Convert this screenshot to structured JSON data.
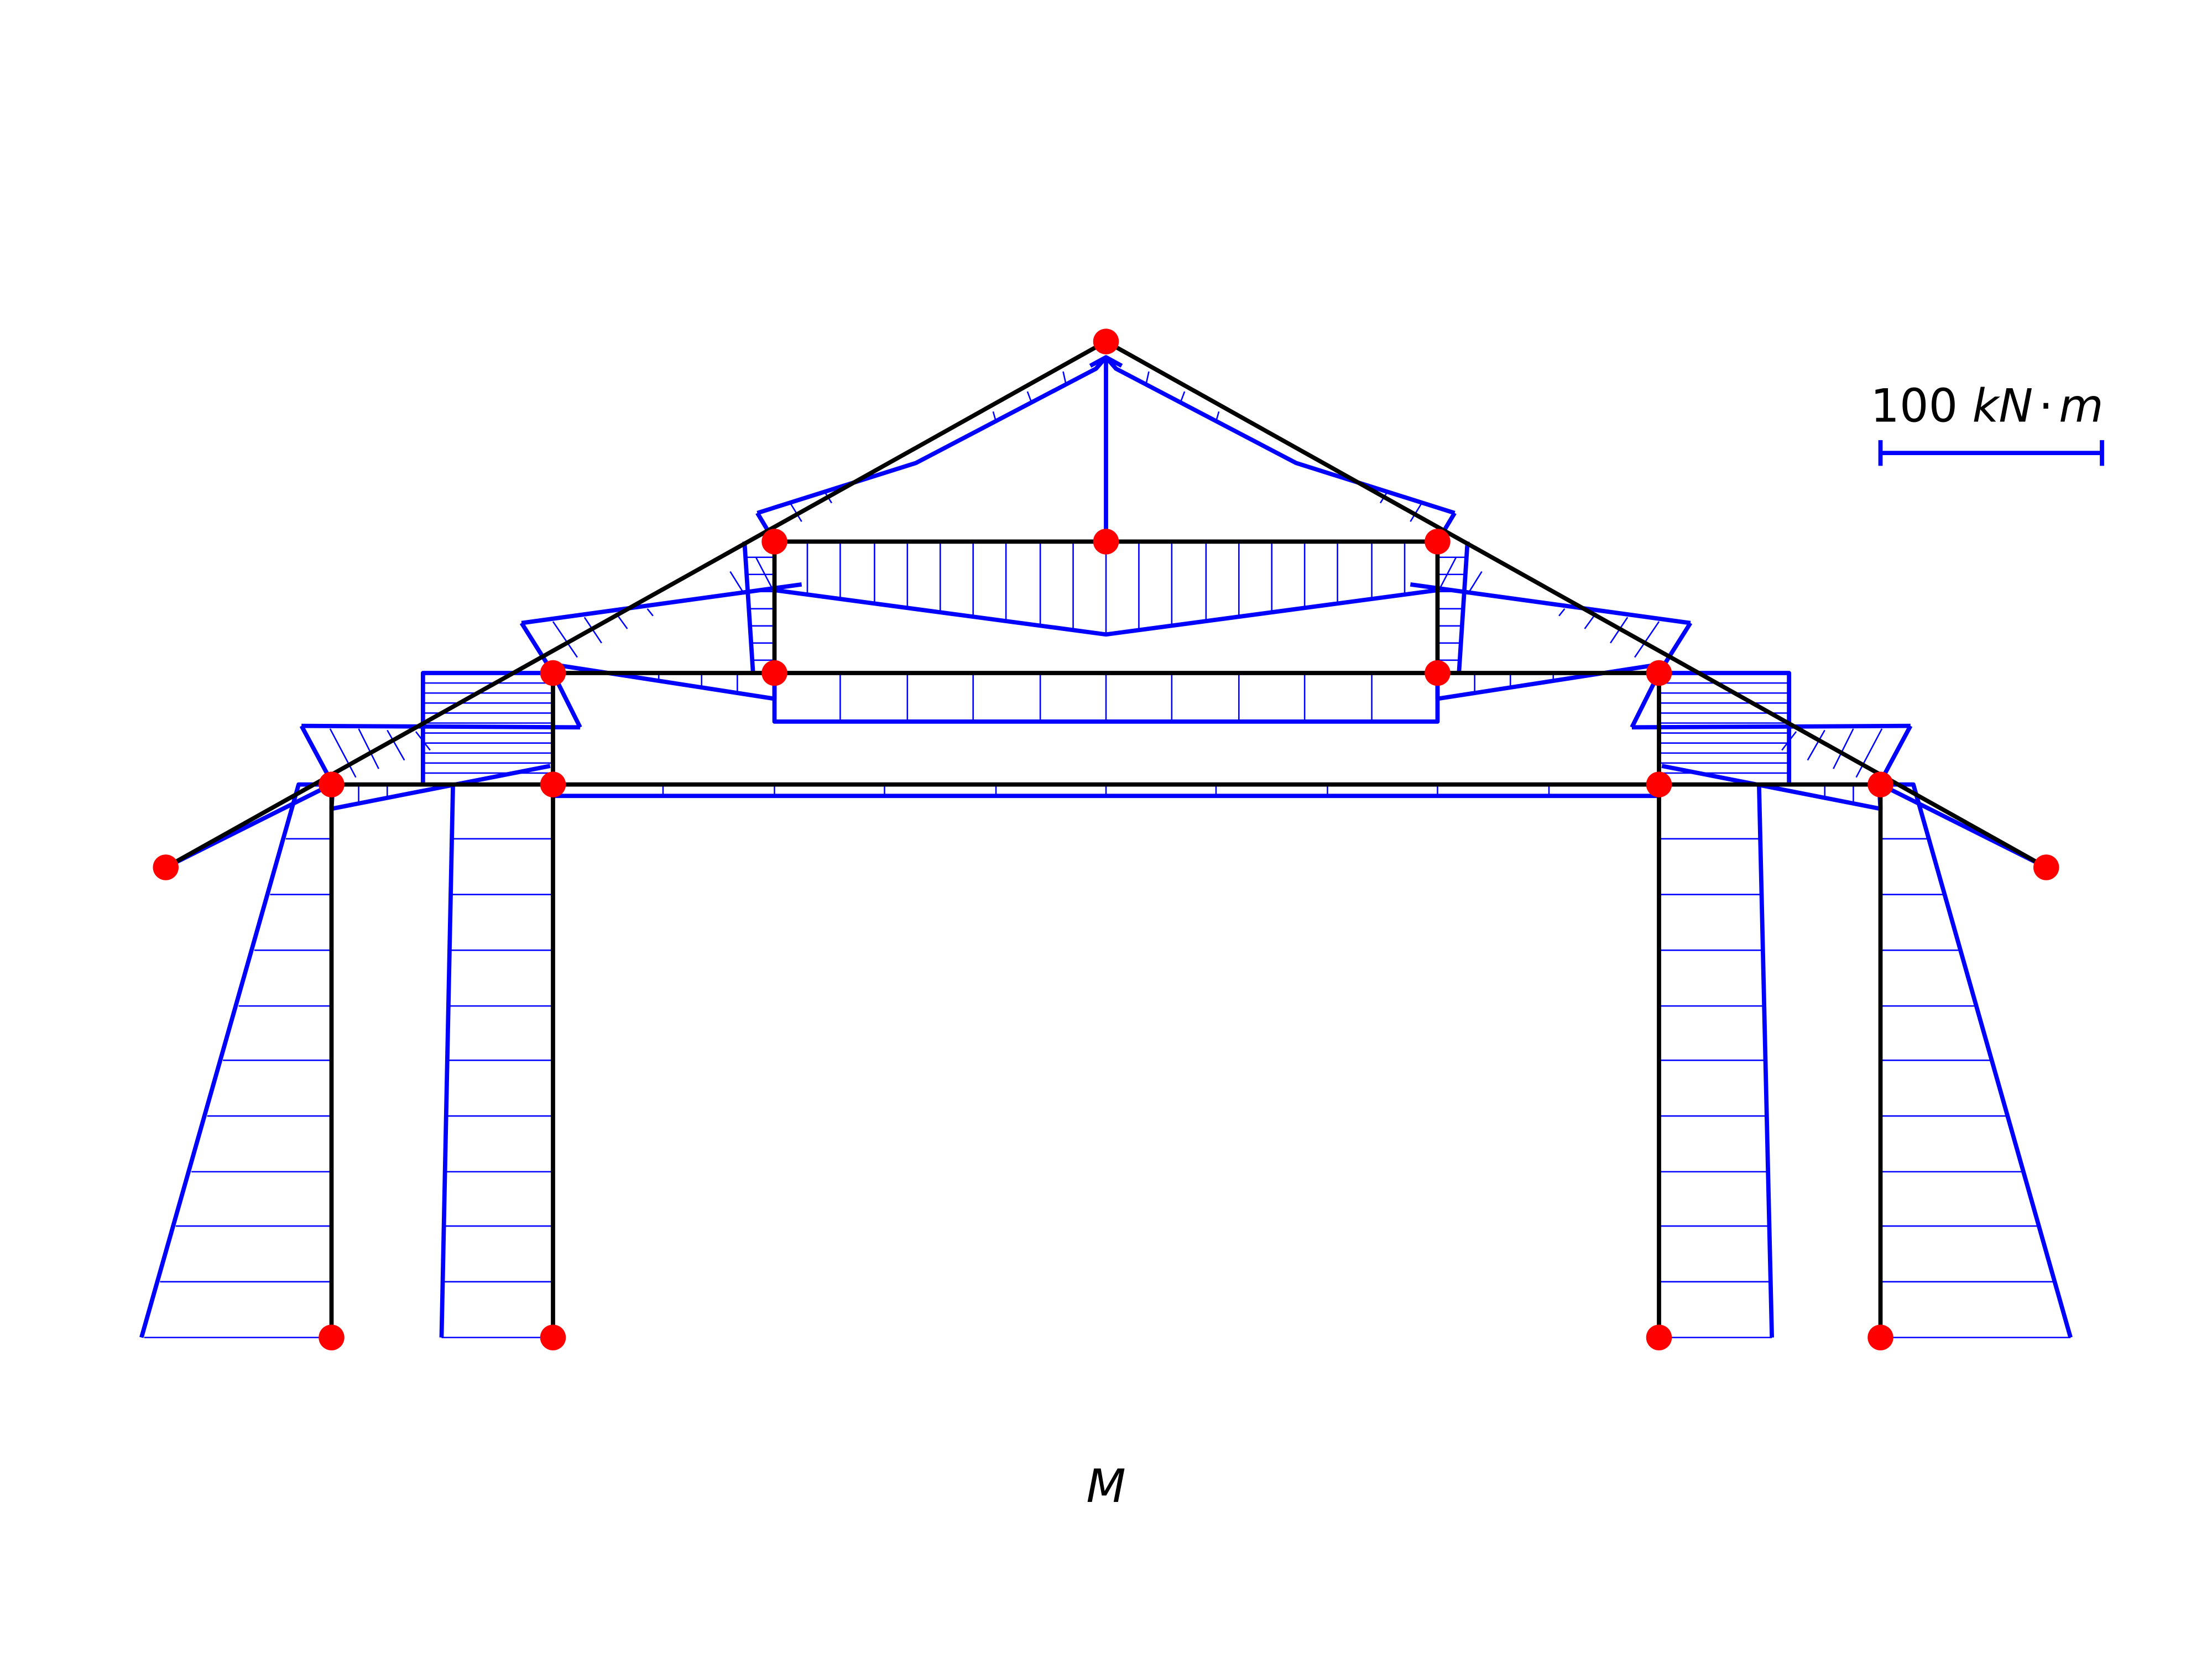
{
  "title": "M",
  "scale_bar": {
    "value": "100",
    "unit": "kN · m",
    "unit_parts": [
      "kN",
      "·",
      "m"
    ]
  },
  "colors": {
    "structure": "#000000",
    "moment_diagram": "#0000ff",
    "node": "#ff0000",
    "background": "#ffffff"
  }
}
